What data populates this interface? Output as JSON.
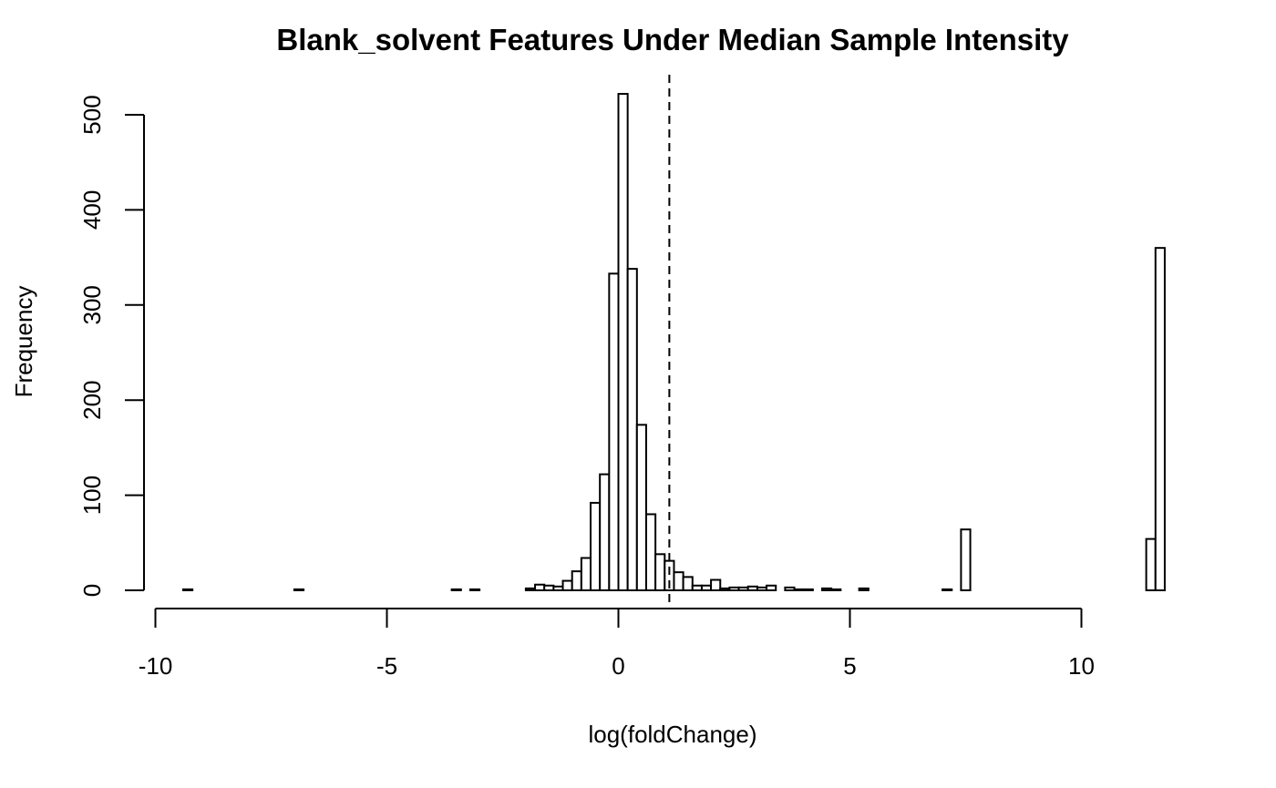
{
  "chart_data": {
    "type": "bar",
    "subtype": "histogram",
    "title": "Blank_solvent Features Under Median Sample Intensity",
    "xlabel": "log(foldChange)",
    "ylabel": "Frequency",
    "xlim": [
      -10,
      12
    ],
    "ylim": [
      0,
      525
    ],
    "x_ticks": [
      -10,
      -5,
      0,
      5,
      10
    ],
    "y_ticks": [
      0,
      100,
      200,
      300,
      400,
      500
    ],
    "grid": false,
    "legend": "none",
    "bin_width": 0.2,
    "bins_start": -9.4,
    "bins_end": 11.8,
    "bins": [
      {
        "x0": -9.4,
        "x1": -9.2,
        "count": 1
      },
      {
        "x0": -7.0,
        "x1": -6.8,
        "count": 1
      },
      {
        "x0": -3.6,
        "x1": -3.4,
        "count": 1
      },
      {
        "x0": -3.2,
        "x1": -3.0,
        "count": 1
      },
      {
        "x0": -2.0,
        "x1": -1.8,
        "count": 2
      },
      {
        "x0": -1.8,
        "x1": -1.6,
        "count": 6
      },
      {
        "x0": -1.6,
        "x1": -1.4,
        "count": 5
      },
      {
        "x0": -1.4,
        "x1": -1.2,
        "count": 4
      },
      {
        "x0": -1.2,
        "x1": -1.0,
        "count": 10
      },
      {
        "x0": -1.0,
        "x1": -0.8,
        "count": 20
      },
      {
        "x0": -0.8,
        "x1": -0.6,
        "count": 34
      },
      {
        "x0": -0.6,
        "x1": -0.4,
        "count": 92
      },
      {
        "x0": -0.4,
        "x1": -0.2,
        "count": 122
      },
      {
        "x0": -0.2,
        "x1": 0.0,
        "count": 333
      },
      {
        "x0": 0.0,
        "x1": 0.2,
        "count": 522
      },
      {
        "x0": 0.2,
        "x1": 0.4,
        "count": 338
      },
      {
        "x0": 0.4,
        "x1": 0.6,
        "count": 174
      },
      {
        "x0": 0.6,
        "x1": 0.8,
        "count": 80
      },
      {
        "x0": 0.8,
        "x1": 1.0,
        "count": 38
      },
      {
        "x0": 1.0,
        "x1": 1.2,
        "count": 31
      },
      {
        "x0": 1.2,
        "x1": 1.4,
        "count": 19
      },
      {
        "x0": 1.4,
        "x1": 1.6,
        "count": 14
      },
      {
        "x0": 1.6,
        "x1": 1.8,
        "count": 5
      },
      {
        "x0": 1.8,
        "x1": 2.0,
        "count": 5
      },
      {
        "x0": 2.0,
        "x1": 2.2,
        "count": 11
      },
      {
        "x0": 2.2,
        "x1": 2.4,
        "count": 2
      },
      {
        "x0": 2.4,
        "x1": 2.6,
        "count": 3
      },
      {
        "x0": 2.6,
        "x1": 2.8,
        "count": 3
      },
      {
        "x0": 2.8,
        "x1": 3.0,
        "count": 4
      },
      {
        "x0": 3.0,
        "x1": 3.2,
        "count": 3
      },
      {
        "x0": 3.2,
        "x1": 3.4,
        "count": 5
      },
      {
        "x0": 3.6,
        "x1": 3.8,
        "count": 3
      },
      {
        "x0": 3.8,
        "x1": 4.0,
        "count": 1
      },
      {
        "x0": 4.0,
        "x1": 4.2,
        "count": 1
      },
      {
        "x0": 4.4,
        "x1": 4.6,
        "count": 2
      },
      {
        "x0": 4.6,
        "x1": 4.8,
        "count": 1
      },
      {
        "x0": 5.2,
        "x1": 5.4,
        "count": 2
      },
      {
        "x0": 7.0,
        "x1": 7.2,
        "count": 1
      },
      {
        "x0": 7.4,
        "x1": 7.6,
        "count": 64
      },
      {
        "x0": 11.4,
        "x1": 11.6,
        "count": 54
      },
      {
        "x0": 11.6,
        "x1": 11.8,
        "count": 360
      }
    ],
    "reference_line": {
      "x": 1.1,
      "style": "dashed"
    }
  }
}
